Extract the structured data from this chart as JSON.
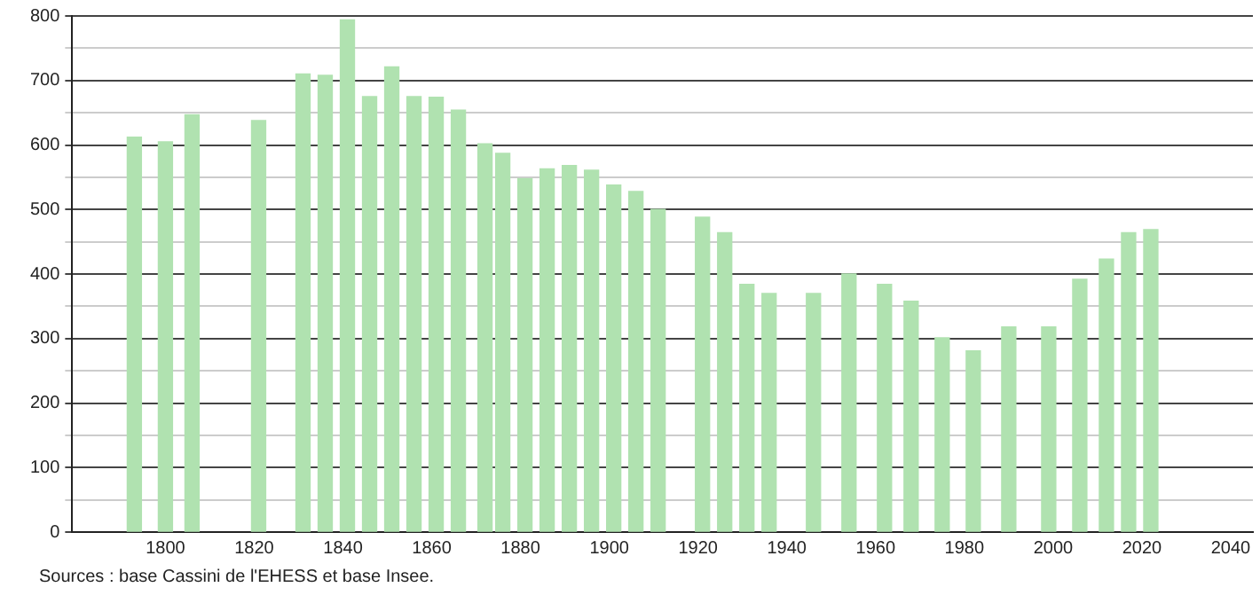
{
  "chart_data": {
    "type": "bar",
    "x": [
      1793,
      1800,
      1806,
      1821,
      1831,
      1836,
      1841,
      1846,
      1851,
      1856,
      1861,
      1866,
      1872,
      1876,
      1881,
      1886,
      1891,
      1896,
      1901,
      1906,
      1911,
      1921,
      1926,
      1931,
      1936,
      1946,
      1954,
      1962,
      1968,
      1975,
      1982,
      1990,
      1999,
      2006,
      2012,
      2017,
      2022
    ],
    "values": [
      612,
      605,
      647,
      638,
      710,
      708,
      794,
      675,
      721,
      675,
      674,
      654,
      602,
      587,
      548,
      563,
      568,
      561,
      538,
      528,
      500,
      488,
      464,
      384,
      370,
      370,
      400,
      384,
      358,
      301,
      281,
      318,
      318,
      392,
      423,
      464,
      469
    ],
    "color": "#b0e2b0",
    "xlim": [
      1779,
      2045
    ],
    "xticks": [
      1800,
      1820,
      1840,
      1860,
      1880,
      1900,
      1920,
      1940,
      1960,
      1980,
      2000,
      2020,
      2040
    ],
    "ylim": [
      0,
      800
    ],
    "yticks": [
      0,
      {
        "value": 50,
        "label": null
      },
      100,
      {
        "value": 150,
        "label": null
      },
      200,
      {
        "value": 250,
        "label": null
      },
      300,
      {
        "value": 350,
        "label": null
      },
      400,
      {
        "value": 450,
        "label": null
      },
      500,
      {
        "value": 550,
        "label": null
      },
      600,
      {
        "value": 650,
        "label": null
      },
      700,
      {
        "value": 750,
        "label": null
      },
      800
    ],
    "grid": "y",
    "legend": false,
    "annotations": [
      "Sources : base Cassini de l'EHESS et base Insee."
    ]
  }
}
